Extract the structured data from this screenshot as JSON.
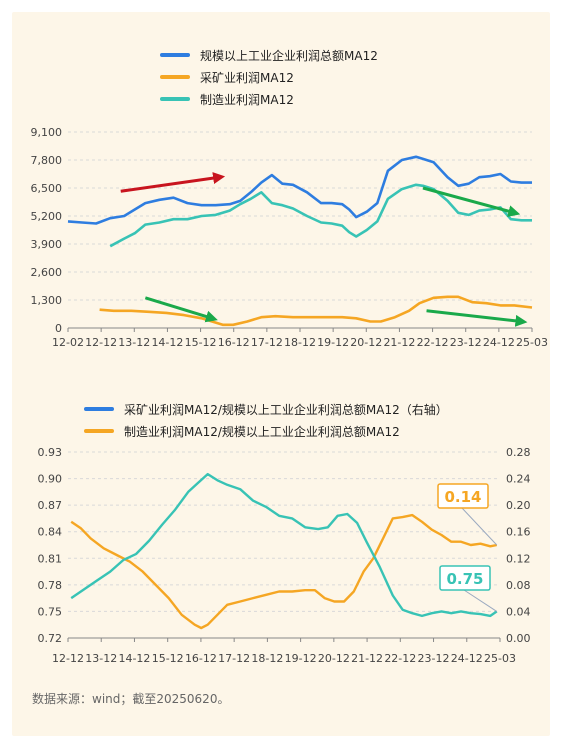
{
  "colors": {
    "total": "#2e7de0",
    "mining": "#f5a623",
    "manufacturing": "#38c3b5",
    "red_arrow": "#c8141e",
    "green_arrow": "#1aa94a",
    "grid": "#d9d9d9"
  },
  "source": "数据来源：wind；截至20250620。",
  "chart_data": [
    {
      "type": "line",
      "title": "",
      "legend_position": "top",
      "ylim": [
        0,
        9100
      ],
      "yticks": [
        "9,100",
        "7,800",
        "6,500",
        "5,200",
        "3,900",
        "2,600",
        "1,300",
        "0"
      ],
      "xticks": [
        "12-02",
        "12-12",
        "13-12",
        "14-12",
        "15-12",
        "16-12",
        "17-12",
        "18-12",
        "19-12",
        "20-12",
        "21-12",
        "22-12",
        "23-12",
        "24-12",
        "25-03"
      ],
      "series": [
        {
          "name": "规模以上工业企业利润总额MA12",
          "key": "total",
          "x": [
            2012.0,
            2012.4,
            2012.8,
            2013.2,
            2013.6,
            2013.9,
            2014.2,
            2014.6,
            2015.0,
            2015.4,
            2015.8,
            2016.2,
            2016.6,
            2016.9,
            2017.2,
            2017.5,
            2017.8,
            2018.1,
            2018.4,
            2018.8,
            2019.2,
            2019.5,
            2019.8,
            2020.0,
            2020.2,
            2020.5,
            2020.8,
            2021.1,
            2021.5,
            2021.9,
            2022.1,
            2022.4,
            2022.8,
            2023.1,
            2023.4,
            2023.7,
            2024.0,
            2024.3,
            2024.6,
            2024.9,
            2025.2
          ],
          "values": [
            4950,
            4900,
            4850,
            5100,
            5200,
            5500,
            5800,
            5950,
            6050,
            5800,
            5700,
            5700,
            5750,
            5900,
            6300,
            6750,
            7100,
            6700,
            6650,
            6300,
            5800,
            5800,
            5750,
            5500,
            5150,
            5400,
            5800,
            7300,
            7800,
            7950,
            7850,
            7700,
            7000,
            6600,
            6700,
            7000,
            7050,
            7150,
            6800,
            6750,
            6750
          ]
        },
        {
          "name": "采矿业利润MA12",
          "key": "mining",
          "x": [
            2012.9,
            2013.3,
            2013.8,
            2014.3,
            2014.8,
            2015.3,
            2015.8,
            2016.1,
            2016.4,
            2016.7,
            2017.1,
            2017.5,
            2017.9,
            2018.4,
            2018.9,
            2019.4,
            2019.8,
            2020.2,
            2020.6,
            2020.9,
            2021.3,
            2021.7,
            2022.0,
            2022.4,
            2022.8,
            2023.1,
            2023.5,
            2023.9,
            2024.3,
            2024.7,
            2025.2
          ],
          "values": [
            850,
            800,
            800,
            750,
            700,
            600,
            450,
            300,
            150,
            150,
            300,
            500,
            550,
            500,
            500,
            500,
            500,
            450,
            300,
            300,
            500,
            800,
            1150,
            1400,
            1450,
            1450,
            1200,
            1150,
            1050,
            1050,
            950
          ]
        },
        {
          "name": "制造业利润MA12",
          "key": "manufacturing",
          "x": [
            2013.2,
            2013.6,
            2013.9,
            2014.2,
            2014.6,
            2015.0,
            2015.4,
            2015.8,
            2016.2,
            2016.6,
            2016.9,
            2017.2,
            2017.5,
            2017.8,
            2018.1,
            2018.4,
            2018.8,
            2019.2,
            2019.5,
            2019.8,
            2020.0,
            2020.2,
            2020.5,
            2020.8,
            2021.1,
            2021.5,
            2021.9,
            2022.1,
            2022.4,
            2022.8,
            2023.1,
            2023.4,
            2023.7,
            2024.0,
            2024.3,
            2024.6,
            2024.9,
            2025.2
          ],
          "values": [
            3800,
            4150,
            4400,
            4800,
            4900,
            5050,
            5050,
            5200,
            5250,
            5450,
            5750,
            6000,
            6300,
            5800,
            5700,
            5550,
            5200,
            4900,
            4850,
            4750,
            4450,
            4250,
            4550,
            4950,
            6000,
            6450,
            6650,
            6600,
            6450,
            5900,
            5350,
            5250,
            5450,
            5500,
            5600,
            5050,
            5000,
            5000
          ]
        }
      ],
      "annotations": [
        {
          "type": "arrow",
          "color": "red",
          "from": [
            2013.5,
            6350
          ],
          "to": [
            2016.3,
            7000
          ]
        },
        {
          "type": "arrow",
          "color": "green",
          "from": [
            2014.2,
            1400
          ],
          "to": [
            2016.1,
            450
          ]
        },
        {
          "type": "arrow",
          "color": "green",
          "from": [
            2022.1,
            6500
          ],
          "to": [
            2024.7,
            5350
          ]
        },
        {
          "type": "arrow",
          "color": "green",
          "from": [
            2022.2,
            800
          ],
          "to": [
            2024.9,
            300
          ]
        }
      ]
    },
    {
      "type": "line",
      "title": "",
      "legend_position": "top",
      "ylim_left": [
        0.72,
        0.93
      ],
      "ylim_right": [
        0.0,
        0.28
      ],
      "yticks_left": [
        "0.93",
        "0.90",
        "0.87",
        "0.84",
        "0.81",
        "0.78",
        "0.75",
        "0.72"
      ],
      "yticks_right": [
        "0.28",
        "0.24",
        "0.20",
        "0.16",
        "0.12",
        "0.08",
        "0.04",
        "0.00"
      ],
      "xticks": [
        "12-12",
        "13-12",
        "14-12",
        "15-12",
        "16-12",
        "17-12",
        "18-12",
        "19-12",
        "20-12",
        "21-12",
        "22-12",
        "23-12",
        "24-12",
        "25-03"
      ],
      "series": [
        {
          "name": "采矿业利润MA12/规模以上工业企业利润总额MA12（右轴）",
          "key": "mining",
          "axis": "right",
          "x": [
            2012.0,
            2012.3,
            2012.6,
            2013.0,
            2013.4,
            2013.8,
            2014.2,
            2014.6,
            2015.0,
            2015.4,
            2015.8,
            2016.0,
            2016.2,
            2016.5,
            2016.8,
            2017.2,
            2017.6,
            2018.0,
            2018.4,
            2018.8,
            2019.2,
            2019.5,
            2019.8,
            2020.1,
            2020.4,
            2020.7,
            2021.0,
            2021.3,
            2021.6,
            2021.9,
            2022.2,
            2022.5,
            2022.8,
            2023.1,
            2023.4,
            2023.7,
            2024.0,
            2024.3,
            2024.6,
            2024.9,
            2025.1
          ],
          "values": [
            0.175,
            0.165,
            0.15,
            0.135,
            0.125,
            0.115,
            0.1,
            0.08,
            0.06,
            0.035,
            0.02,
            0.015,
            0.02,
            0.035,
            0.05,
            0.055,
            0.06,
            0.065,
            0.07,
            0.07,
            0.072,
            0.072,
            0.06,
            0.055,
            0.055,
            0.07,
            0.1,
            0.12,
            0.15,
            0.18,
            0.182,
            0.185,
            0.175,
            0.163,
            0.155,
            0.145,
            0.145,
            0.14,
            0.142,
            0.138,
            0.14
          ]
        },
        {
          "name": "制造业利润MA12/规模以上工业企业利润总额MA12",
          "key": "manufacturing",
          "axis": "left",
          "x": [
            2012.0,
            2012.4,
            2012.8,
            2013.2,
            2013.6,
            2014.0,
            2014.4,
            2014.8,
            2015.2,
            2015.6,
            2015.9,
            2016.2,
            2016.5,
            2016.8,
            2017.2,
            2017.6,
            2018.0,
            2018.4,
            2018.8,
            2019.2,
            2019.6,
            2019.9,
            2020.2,
            2020.5,
            2020.8,
            2021.1,
            2021.5,
            2021.9,
            2022.2,
            2022.5,
            2022.8,
            2023.1,
            2023.4,
            2023.7,
            2024.0,
            2024.3,
            2024.6,
            2024.9,
            2025.1
          ],
          "values": [
            0.765,
            0.775,
            0.785,
            0.795,
            0.808,
            0.815,
            0.83,
            0.848,
            0.865,
            0.885,
            0.895,
            0.905,
            0.898,
            0.893,
            0.888,
            0.875,
            0.868,
            0.858,
            0.855,
            0.845,
            0.843,
            0.845,
            0.858,
            0.86,
            0.85,
            0.828,
            0.8,
            0.768,
            0.752,
            0.748,
            0.745,
            0.748,
            0.75,
            0.748,
            0.75,
            0.748,
            0.747,
            0.745,
            0.75
          ]
        }
      ],
      "callouts": [
        {
          "text": "0.14",
          "series": "mining"
        },
        {
          "text": "0.75",
          "series": "manufacturing"
        }
      ]
    }
  ]
}
